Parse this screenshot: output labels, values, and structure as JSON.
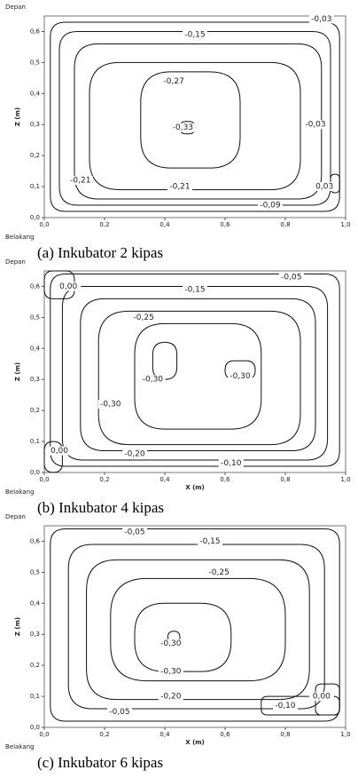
{
  "chart_data": [
    {
      "type": "contour",
      "title": "(a) Inkubator 2 kipas",
      "ylabel": "Z (m)",
      "annotations": [
        "Depan",
        "Belakang"
      ],
      "xlim": [
        0,
        1
      ],
      "ylim": [
        0,
        0.65
      ],
      "xticks": [
        {
          "value": 0,
          "label": "0,0"
        },
        {
          "value": 0.2,
          "label": "0,2"
        },
        {
          "value": 0.4,
          "label": "0,4"
        },
        {
          "value": 0.6,
          "label": "0,6"
        },
        {
          "value": 0.8,
          "label": "0,8"
        },
        {
          "value": 1,
          "label": "1,0"
        }
      ],
      "yticks": [
        {
          "value": 0,
          "label": "0,0"
        },
        {
          "value": 0.1,
          "label": "0,1"
        },
        {
          "value": 0.2,
          "label": "0,2"
        },
        {
          "value": 0.3,
          "label": "0,3"
        },
        {
          "value": 0.4,
          "label": "0,4"
        },
        {
          "value": 0.5,
          "label": "0,5"
        },
        {
          "value": 0.6,
          "label": "0,6"
        }
      ],
      "contour_labels": [
        {
          "value": -0.03,
          "label": "-0,03"
        },
        {
          "value": -0.15,
          "label": "-0,15"
        },
        {
          "value": -0.27,
          "label": "-0,27"
        },
        {
          "value": -0.33,
          "label": "-0,33"
        },
        {
          "value": -0.03,
          "label": "-0,03"
        },
        {
          "value": -0.21,
          "label": "-0,21"
        },
        {
          "value": -0.21,
          "label": "-0,21"
        },
        {
          "value": 0.03,
          "label": "0,03"
        },
        {
          "value": -0.09,
          "label": "-0,09"
        }
      ]
    },
    {
      "type": "contour",
      "title": "(b) Inkubator 4 kipas",
      "xlabel": "X (m)",
      "ylabel": "Z (m)",
      "annotations": [
        "Depan",
        "Belakang"
      ],
      "xlim": [
        0,
        1
      ],
      "ylim": [
        0,
        0.65
      ],
      "xticks": [
        {
          "value": 0,
          "label": "0,0"
        },
        {
          "value": 0.2,
          "label": "0,2"
        },
        {
          "value": 0.4,
          "label": "0,4"
        },
        {
          "value": 0.6,
          "label": "0,6"
        },
        {
          "value": 0.8,
          "label": "0,8"
        },
        {
          "value": 1,
          "label": "1,0"
        }
      ],
      "yticks": [
        {
          "value": 0,
          "label": "0,0"
        },
        {
          "value": 0.1,
          "label": "0,1"
        },
        {
          "value": 0.2,
          "label": "0,2"
        },
        {
          "value": 0.3,
          "label": "0,3"
        },
        {
          "value": 0.4,
          "label": "0,4"
        },
        {
          "value": 0.5,
          "label": "0,5"
        },
        {
          "value": 0.6,
          "label": "0,6"
        }
      ],
      "contour_labels": [
        {
          "value": 0,
          "label": "0,00"
        },
        {
          "value": -0.05,
          "label": "-0,05"
        },
        {
          "value": -0.15,
          "label": "-0,15"
        },
        {
          "value": -0.25,
          "label": "-0,25"
        },
        {
          "value": -0.3,
          "label": "-0,30"
        },
        {
          "value": -0.3,
          "label": "-0,30"
        },
        {
          "value": -0.3,
          "label": "-0,30"
        },
        {
          "value": 0,
          "label": "0,00"
        },
        {
          "value": -0.2,
          "label": "-0,20"
        },
        {
          "value": -0.1,
          "label": "-0,10"
        }
      ]
    },
    {
      "type": "contour",
      "title": "(c) Inkubator 6 kipas",
      "xlabel": "X (m)",
      "ylabel": "Z (m)",
      "annotations": [
        "Depan",
        "Belakang"
      ],
      "xlim": [
        0,
        1
      ],
      "ylim": [
        0,
        0.65
      ],
      "xticks": [
        {
          "value": 0,
          "label": "0,0"
        },
        {
          "value": 0.2,
          "label": "0,2"
        },
        {
          "value": 0.4,
          "label": "0,4"
        },
        {
          "value": 0.6,
          "label": "0,6"
        },
        {
          "value": 0.8,
          "label": "0,8"
        },
        {
          "value": 1,
          "label": "1,0"
        }
      ],
      "yticks": [
        {
          "value": 0,
          "label": "0,0"
        },
        {
          "value": 0.1,
          "label": "0,1"
        },
        {
          "value": 0.2,
          "label": "0,2"
        },
        {
          "value": 0.3,
          "label": "0,3"
        },
        {
          "value": 0.4,
          "label": "0,4"
        },
        {
          "value": 0.5,
          "label": "0,5"
        },
        {
          "value": 0.6,
          "label": "0,6"
        }
      ],
      "contour_labels": [
        {
          "value": -0.05,
          "label": "-0,05"
        },
        {
          "value": -0.15,
          "label": "-0,15"
        },
        {
          "value": -0.25,
          "label": "-0,25"
        },
        {
          "value": -0.3,
          "label": "-0,30"
        },
        {
          "value": -0.3,
          "label": "-0,30"
        },
        {
          "value": -0.2,
          "label": "-0,20"
        },
        {
          "value": -0.1,
          "label": "-0,10"
        },
        {
          "value": 0,
          "label": "0,00"
        },
        {
          "value": -0.05,
          "label": "-0,05"
        }
      ]
    }
  ]
}
